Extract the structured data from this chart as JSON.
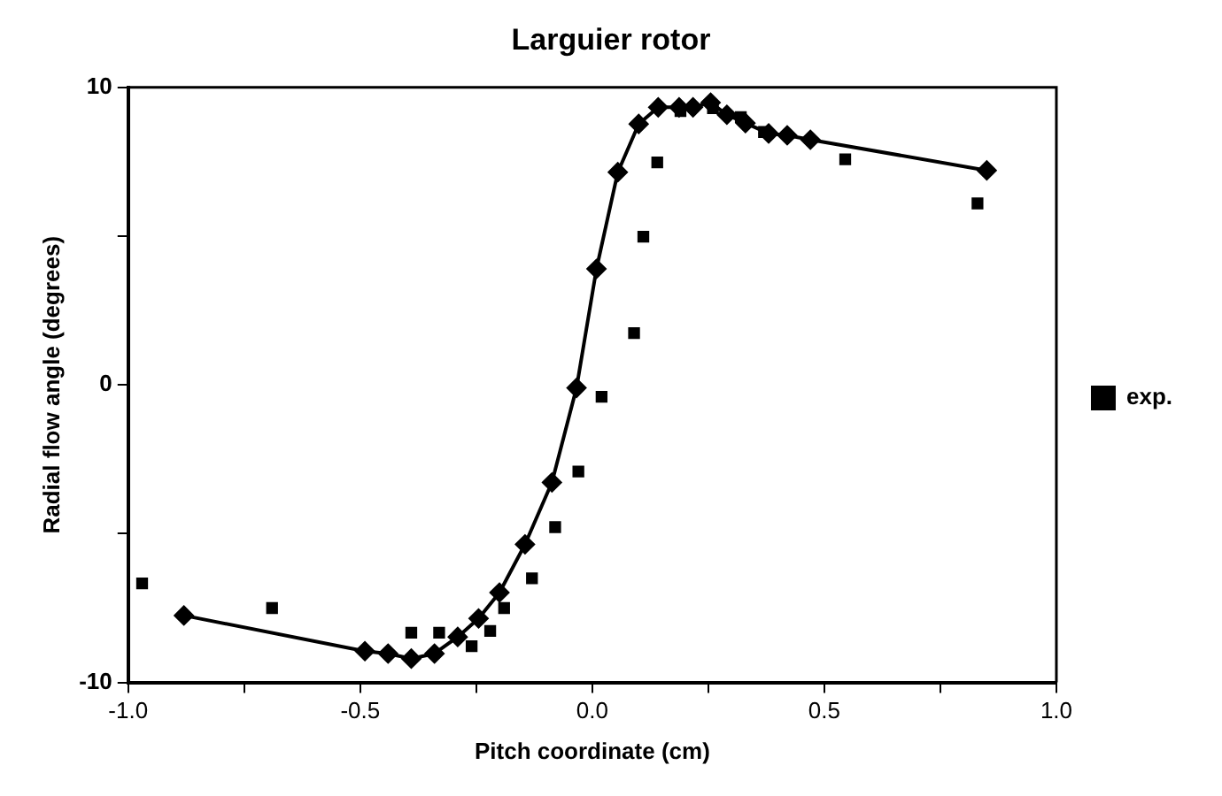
{
  "chart_data": {
    "type": "scatter",
    "title": "Larguier rotor",
    "xlabel": "Pitch coordinate (cm)",
    "ylabel": "Radial flow angle (degrees)",
    "xlim": [
      -1.0,
      1.0
    ],
    "ylim": [
      -10,
      10
    ],
    "xticks": [
      {
        "value": -1.0,
        "label": "-1.0"
      },
      {
        "value": -0.75,
        "label": null
      },
      {
        "value": -0.5,
        "label": "-0.5"
      },
      {
        "value": -0.25,
        "label": null
      },
      {
        "value": 0.0,
        "label": "0.0"
      },
      {
        "value": 0.25,
        "label": null
      },
      {
        "value": 0.5,
        "label": "0.5"
      },
      {
        "value": 0.75,
        "label": null
      },
      {
        "value": 1.0,
        "label": "1.0"
      }
    ],
    "yticks": [
      -10,
      {
        "value": -5,
        "label": null
      },
      0,
      {
        "value": 5,
        "label": null
      },
      10
    ],
    "grid": false,
    "legend": "right",
    "series": [
      {
        "type": "line",
        "color": "#000000",
        "marker": "diamond",
        "line_style": "solid",
        "x": [
          -0.88,
          -0.49,
          -0.44,
          -0.39,
          -0.34,
          -0.29,
          -0.245,
          -0.2,
          -0.145,
          -0.087,
          -0.034,
          0.009,
          0.055,
          0.1,
          0.142,
          0.187,
          0.217,
          0.255,
          0.29,
          0.33,
          0.38,
          0.42,
          0.47,
          0.85
        ],
        "values": [
          -7.75,
          -8.95,
          -9.03,
          -9.2,
          -9.03,
          -8.47,
          -7.85,
          -6.98,
          -5.36,
          -3.28,
          -0.1,
          3.9,
          7.15,
          8.77,
          9.33,
          9.33,
          9.33,
          9.49,
          9.08,
          8.8,
          8.45,
          8.39,
          8.24,
          7.21
        ]
      },
      {
        "type": "scatter",
        "name": "exp.",
        "color": "#000000",
        "marker": "square",
        "x": [
          -0.97,
          -0.69,
          -0.39,
          -0.33,
          -0.26,
          -0.22,
          -0.19,
          -0.13,
          -0.08,
          -0.03,
          0.02,
          0.09,
          0.11,
          0.14,
          0.19,
          0.26,
          0.32,
          0.37,
          0.545,
          0.83
        ],
        "values": [
          -6.67,
          -7.5,
          -8.33,
          -8.33,
          -8.78,
          -8.27,
          -7.5,
          -6.5,
          -4.78,
          -2.91,
          -0.4,
          1.74,
          4.98,
          7.48,
          9.2,
          9.3,
          9.0,
          8.5,
          7.58,
          6.1
        ]
      }
    ]
  }
}
